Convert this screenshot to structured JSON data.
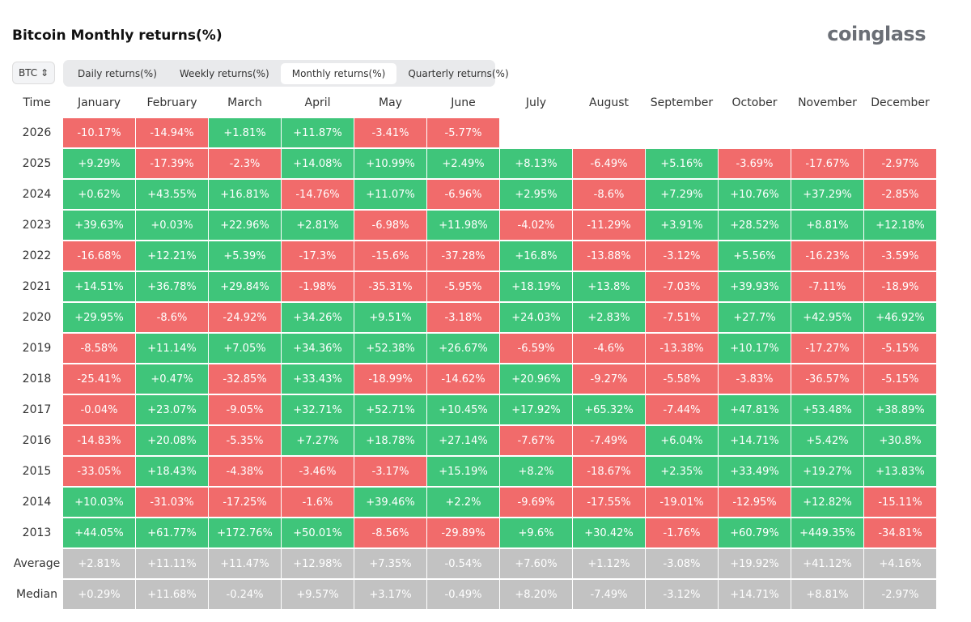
{
  "header": {
    "title": "Bitcoin Monthly returns(%)",
    "logo": "coinglass",
    "asset": "BTC",
    "tabs": [
      "Daily returns(%)",
      "Weekly returns(%)",
      "Monthly returns(%)",
      "Quarterly returns(%)"
    ],
    "active_tab": 2
  },
  "table": {
    "columns": [
      "Time",
      "January",
      "February",
      "March",
      "April",
      "May",
      "June",
      "July",
      "August",
      "September",
      "October",
      "November",
      "December"
    ],
    "rows": [
      {
        "label": "2026",
        "cells": [
          "-10.17%",
          "-14.94%",
          "+1.81%",
          "+11.87%",
          "-3.41%",
          "-5.77%"
        ]
      },
      {
        "label": "2025",
        "cells": [
          "+9.29%",
          "-17.39%",
          "-2.3%",
          "+14.08%",
          "+10.99%",
          "+2.49%",
          "+8.13%",
          "-6.49%",
          "+5.16%",
          "-3.69%",
          "-17.67%",
          "-2.97%"
        ]
      },
      {
        "label": "2024",
        "cells": [
          "+0.62%",
          "+43.55%",
          "+16.81%",
          "-14.76%",
          "+11.07%",
          "-6.96%",
          "+2.95%",
          "-8.6%",
          "+7.29%",
          "+10.76%",
          "+37.29%",
          "-2.85%"
        ]
      },
      {
        "label": "2023",
        "cells": [
          "+39.63%",
          "+0.03%",
          "+22.96%",
          "+2.81%",
          "-6.98%",
          "+11.98%",
          "-4.02%",
          "-11.29%",
          "+3.91%",
          "+28.52%",
          "+8.81%",
          "+12.18%"
        ]
      },
      {
        "label": "2022",
        "cells": [
          "-16.68%",
          "+12.21%",
          "+5.39%",
          "-17.3%",
          "-15.6%",
          "-37.28%",
          "+16.8%",
          "-13.88%",
          "-3.12%",
          "+5.56%",
          "-16.23%",
          "-3.59%"
        ]
      },
      {
        "label": "2021",
        "cells": [
          "+14.51%",
          "+36.78%",
          "+29.84%",
          "-1.98%",
          "-35.31%",
          "-5.95%",
          "+18.19%",
          "+13.8%",
          "-7.03%",
          "+39.93%",
          "-7.11%",
          "-18.9%"
        ]
      },
      {
        "label": "2020",
        "cells": [
          "+29.95%",
          "-8.6%",
          "-24.92%",
          "+34.26%",
          "+9.51%",
          "-3.18%",
          "+24.03%",
          "+2.83%",
          "-7.51%",
          "+27.7%",
          "+42.95%",
          "+46.92%"
        ]
      },
      {
        "label": "2019",
        "cells": [
          "-8.58%",
          "+11.14%",
          "+7.05%",
          "+34.36%",
          "+52.38%",
          "+26.67%",
          "-6.59%",
          "-4.6%",
          "-13.38%",
          "+10.17%",
          "-17.27%",
          "-5.15%"
        ]
      },
      {
        "label": "2018",
        "cells": [
          "-25.41%",
          "+0.47%",
          "-32.85%",
          "+33.43%",
          "-18.99%",
          "-14.62%",
          "+20.96%",
          "-9.27%",
          "-5.58%",
          "-3.83%",
          "-36.57%",
          "-5.15%"
        ]
      },
      {
        "label": "2017",
        "cells": [
          "-0.04%",
          "+23.07%",
          "-9.05%",
          "+32.71%",
          "+52.71%",
          "+10.45%",
          "+17.92%",
          "+65.32%",
          "-7.44%",
          "+47.81%",
          "+53.48%",
          "+38.89%"
        ]
      },
      {
        "label": "2016",
        "cells": [
          "-14.83%",
          "+20.08%",
          "-5.35%",
          "+7.27%",
          "+18.78%",
          "+27.14%",
          "-7.67%",
          "-7.49%",
          "+6.04%",
          "+14.71%",
          "+5.42%",
          "+30.8%"
        ]
      },
      {
        "label": "2015",
        "cells": [
          "-33.05%",
          "+18.43%",
          "-4.38%",
          "-3.46%",
          "-3.17%",
          "+15.19%",
          "+8.2%",
          "-18.67%",
          "+2.35%",
          "+33.49%",
          "+19.27%",
          "+13.83%"
        ]
      },
      {
        "label": "2014",
        "cells": [
          "+10.03%",
          "-31.03%",
          "-17.25%",
          "-1.6%",
          "+39.46%",
          "+2.2%",
          "-9.69%",
          "-17.55%",
          "-19.01%",
          "-12.95%",
          "+12.82%",
          "-15.11%"
        ]
      },
      {
        "label": "2013",
        "cells": [
          "+44.05%",
          "+61.77%",
          "+172.76%",
          "+50.01%",
          "-8.56%",
          "-29.89%",
          "+9.6%",
          "+30.42%",
          "-1.76%",
          "+60.79%",
          "+449.35%",
          "-34.81%"
        ]
      }
    ],
    "summary_rows": [
      {
        "label": "Average",
        "cells": [
          "+2.81%",
          "+11.11%",
          "+11.47%",
          "+12.98%",
          "+7.35%",
          "-0.54%",
          "+7.60%",
          "+1.12%",
          "-3.08%",
          "+19.92%",
          "+41.12%",
          "+4.16%"
        ]
      },
      {
        "label": "Median",
        "cells": [
          "+0.29%",
          "+11.68%",
          "-0.24%",
          "+9.57%",
          "+3.17%",
          "-0.49%",
          "+8.20%",
          "-7.49%",
          "-3.12%",
          "+14.71%",
          "+8.81%",
          "-2.97%"
        ]
      }
    ]
  }
}
